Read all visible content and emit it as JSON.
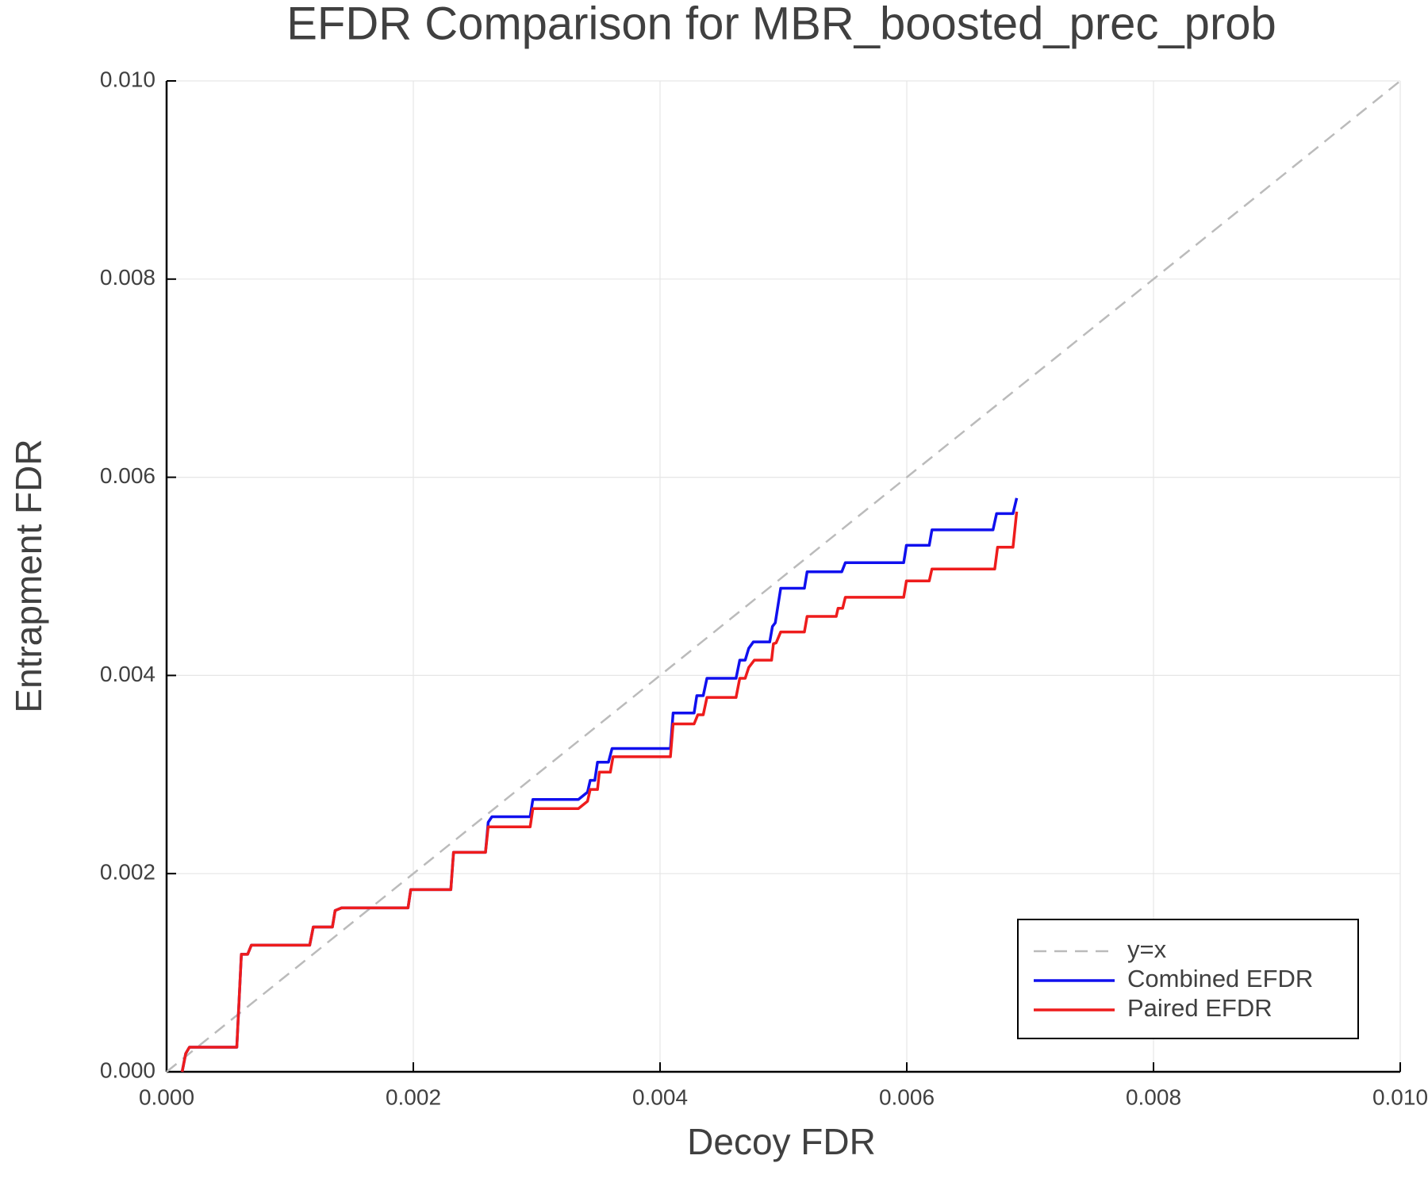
{
  "chart_data": {
    "type": "line",
    "title": "EFDR Comparison for MBR_boosted_prec_prob",
    "x_label": "Decoy FDR",
    "y_label": "Entrapment FDR",
    "xlim": [
      0,
      0.01
    ],
    "ylim": [
      0,
      0.01
    ],
    "xticks": [
      {
        "value": 0,
        "label": "0.000"
      },
      {
        "value": 0.002,
        "label": "0.002"
      },
      {
        "value": 0.004,
        "label": "0.004"
      },
      {
        "value": 0.006,
        "label": "0.006"
      },
      {
        "value": 0.008,
        "label": "0.008"
      },
      {
        "value": 0.01,
        "label": "0.010"
      }
    ],
    "yticks": [
      {
        "value": 0,
        "label": "0.000"
      },
      {
        "value": 0.002,
        "label": "0.002"
      },
      {
        "value": 0.004,
        "label": "0.004"
      },
      {
        "value": 0.006,
        "label": "0.006"
      },
      {
        "value": 0.008,
        "label": "0.008"
      },
      {
        "value": 0.01,
        "label": "0.010"
      }
    ],
    "grid": true,
    "legend": "lower right",
    "series": [
      {
        "name": "y=x",
        "color": "#bbbbbb",
        "style": "dashed",
        "x": [
          0,
          0.01
        ],
        "values": [
          0,
          0.01
        ]
      },
      {
        "name": "Combined EFDR",
        "color": "#1010ee",
        "style": "solid",
        "x": [
          0.000126,
          0.000155,
          0.000185,
          0.000569,
          0.000606,
          0.000657,
          0.000687,
          0.00116,
          0.001189,
          0.001344,
          0.001366,
          0.001418,
          0.001957,
          0.001979,
          0.002304,
          0.002326,
          0.002585,
          0.002607,
          0.002637,
          0.002947,
          0.002969,
          0.003338,
          0.003412,
          0.003434,
          0.003471,
          0.003493,
          0.003582,
          0.003611,
          0.004084,
          0.004106,
          0.004276,
          0.004298,
          0.00435,
          0.00438,
          0.004616,
          0.004646,
          0.00469,
          0.004719,
          0.004756,
          0.004889,
          0.004911,
          0.004934,
          0.004978,
          0.00517,
          0.005192,
          0.005473,
          0.005502,
          0.005975,
          0.005997,
          0.006182,
          0.006204,
          0.006699,
          0.006728,
          0.006861,
          0.006891
        ],
        "values": [
          0,
          0.000184,
          0.000248,
          0.000248,
          0.001186,
          0.001186,
          0.001278,
          0.001278,
          0.001461,
          0.001461,
          0.001627,
          0.001654,
          0.001654,
          0.001838,
          0.001838,
          0.002215,
          0.002215,
          0.002518,
          0.002574,
          0.002574,
          0.002748,
          0.002748,
          0.002822,
          0.002941,
          0.002941,
          0.003125,
          0.003125,
          0.003263,
          0.003263,
          0.003621,
          0.003621,
          0.003796,
          0.003796,
          0.003971,
          0.003971,
          0.004154,
          0.004154,
          0.004274,
          0.004338,
          0.004338,
          0.004494,
          0.004531,
          0.00488,
          0.00488,
          0.005046,
          0.005046,
          0.005138,
          0.005138,
          0.005313,
          0.005313,
          0.005469,
          0.005469,
          0.005634,
          0.005634,
          0.00579
        ]
      },
      {
        "name": "Paired EFDR",
        "color": "#ee1c1c",
        "style": "solid",
        "x": [
          0.000126,
          0.000155,
          0.000185,
          0.000569,
          0.000606,
          0.000657,
          0.000687,
          0.00116,
          0.001189,
          0.001344,
          0.001366,
          0.001418,
          0.001957,
          0.001979,
          0.002304,
          0.002326,
          0.002585,
          0.002607,
          0.002947,
          0.002969,
          0.003338,
          0.003412,
          0.003434,
          0.003493,
          0.003508,
          0.003597,
          0.003619,
          0.004084,
          0.004106,
          0.004276,
          0.004306,
          0.00435,
          0.00438,
          0.004616,
          0.004646,
          0.00469,
          0.004719,
          0.004764,
          0.004904,
          0.004919,
          0.004941,
          0.004978,
          0.00517,
          0.005192,
          0.005428,
          0.005443,
          0.00548,
          0.005502,
          0.005975,
          0.005997,
          0.006182,
          0.006204,
          0.006713,
          0.006736,
          0.006861,
          0.006891
        ],
        "values": [
          0,
          0.000184,
          0.000248,
          0.000248,
          0.001186,
          0.001186,
          0.001278,
          0.001278,
          0.001461,
          0.001461,
          0.001627,
          0.001654,
          0.001654,
          0.001838,
          0.001838,
          0.002215,
          0.002215,
          0.002472,
          0.002472,
          0.002656,
          0.002656,
          0.00273,
          0.002849,
          0.002849,
          0.003024,
          0.003024,
          0.00318,
          0.00318,
          0.003511,
          0.003511,
          0.003603,
          0.003603,
          0.003778,
          0.003778,
          0.003971,
          0.003971,
          0.004081,
          0.004154,
          0.004154,
          0.00432,
          0.004329,
          0.004439,
          0.004439,
          0.004596,
          0.004596,
          0.004678,
          0.004678,
          0.004789,
          0.004789,
          0.004954,
          0.004954,
          0.005074,
          0.005074,
          0.005294,
          0.005294,
          0.005653
        ]
      }
    ]
  }
}
